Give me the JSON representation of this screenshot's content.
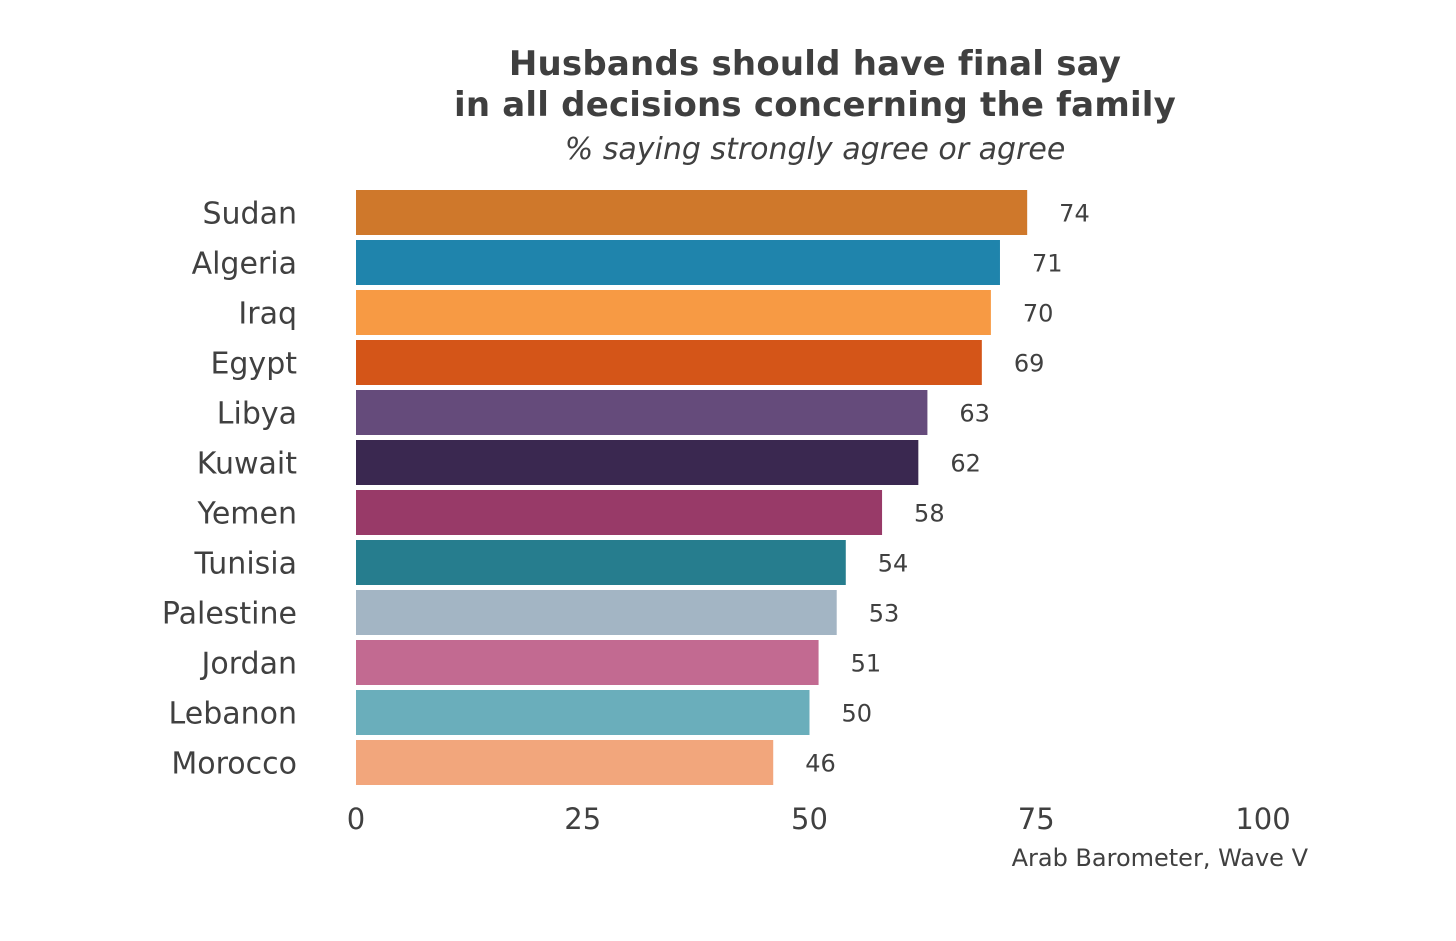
{
  "chart_data": {
    "type": "bar",
    "orientation": "horizontal",
    "title_lines": [
      "Husbands should have final say",
      "in all decisions concerning the family"
    ],
    "subtitle": "% saying strongly agree or agree",
    "categories": [
      "Sudan",
      "Algeria",
      "Iraq",
      "Egypt",
      "Libya",
      "Kuwait",
      "Yemen",
      "Tunisia",
      "Palestine",
      "Jordan",
      "Lebanon",
      "Morocco"
    ],
    "values": [
      74,
      71,
      70,
      69,
      63,
      62,
      58,
      54,
      53,
      51,
      50,
      46
    ],
    "data_labels": [
      "74",
      "71",
      "70",
      "69",
      "63",
      "62",
      "58",
      "54",
      "53",
      "51",
      "50",
      "46"
    ],
    "colors": [
      "#cf782b",
      "#1f84ac",
      "#f79a44",
      "#d45518",
      "#654b7b",
      "#3a2850",
      "#983a68",
      "#267d8e",
      "#a3b5c4",
      "#c26a91",
      "#6aaebb",
      "#f2a67c"
    ],
    "xlim": [
      0,
      100
    ],
    "xticks": [
      0,
      25,
      50,
      75,
      100
    ],
    "xtick_labels": [
      "0",
      "25",
      "50",
      "75",
      "100"
    ],
    "grid": false,
    "legend": "none",
    "source": "Arab Barometer, Wave V"
  }
}
